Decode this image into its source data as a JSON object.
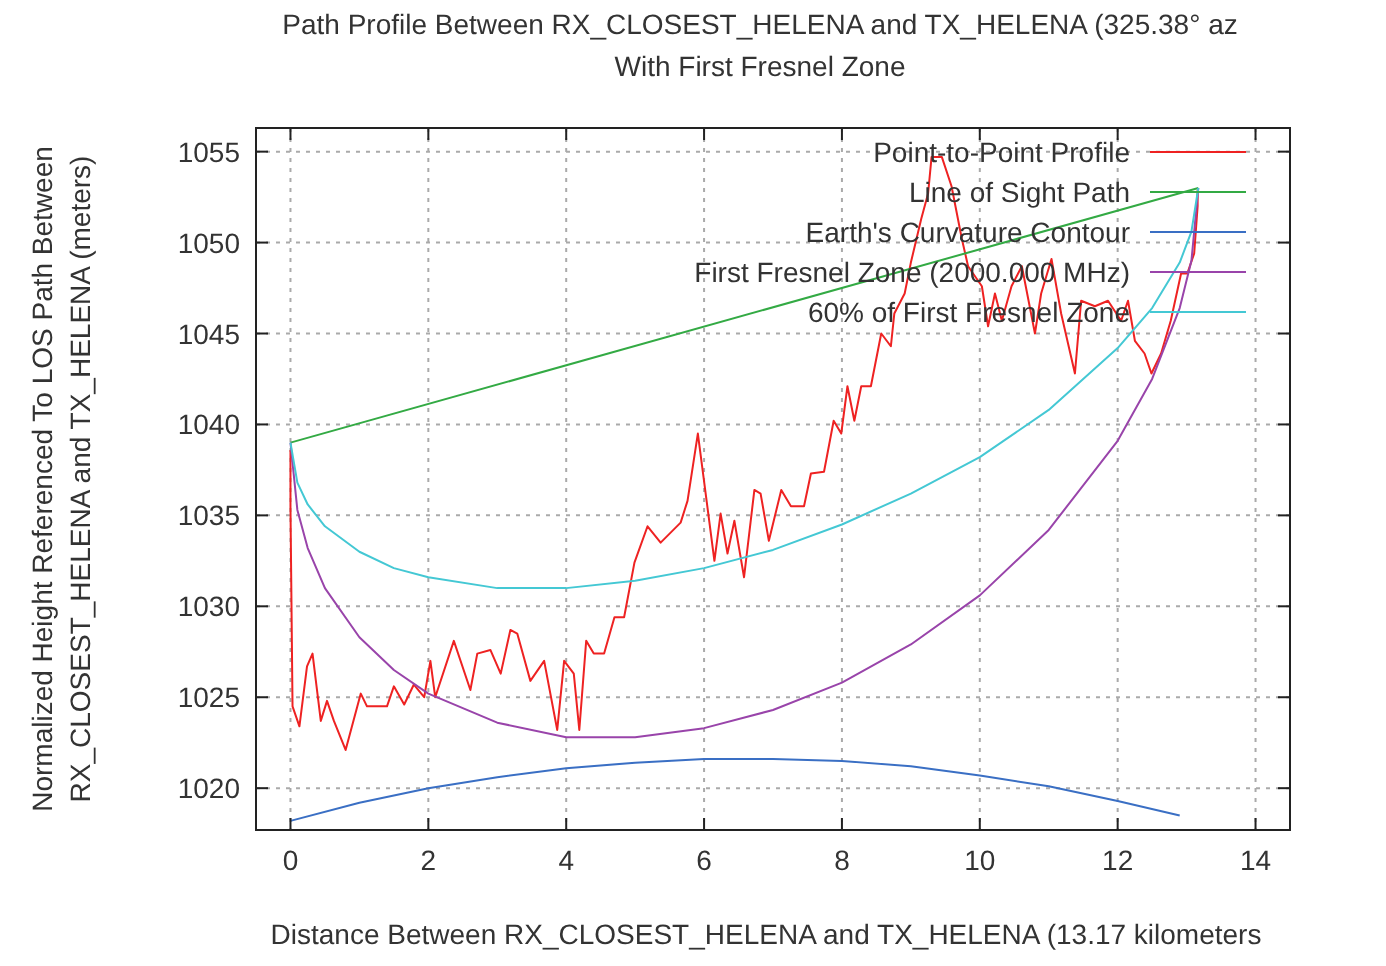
{
  "chart_data": {
    "type": "line",
    "title": "Path Profile Between RX_CLOSEST_HELENA and TX_HELENA (325.38° az",
    "subtitle": "With First Fresnel Zone",
    "xlabel": "Distance Between RX_CLOSEST_HELENA and TX_HELENA (13.17 kilometers",
    "ylabel": "Normalized Height Referenced To LOS Path Between\nRX_CLOSEST_HELENA and TX_HELENA (meters)",
    "xlim": [
      -0.5,
      14.5
    ],
    "xticks": [
      0,
      2,
      4,
      6,
      8,
      10,
      12,
      14
    ],
    "ylim": [
      1017.7,
      1056.3
    ],
    "yticks": [
      1020,
      1025,
      1030,
      1035,
      1040,
      1045,
      1050,
      1055
    ],
    "grid": true,
    "legend": "top right",
    "marker": "none",
    "line_style": "solid",
    "series": [
      {
        "name": "Point-to-Point Profile",
        "color": "#ee2222",
        "x": [
          0,
          0,
          0.03,
          0.13,
          0.24,
          0.32,
          0.44,
          0.53,
          0.63,
          0.8,
          1.02,
          1.11,
          1.4,
          1.5,
          1.65,
          1.79,
          1.94,
          2.03,
          2.1,
          2.37,
          2.61,
          2.71,
          2.9,
          3.05,
          3.19,
          3.29,
          3.48,
          3.68,
          3.87,
          3.97,
          4.11,
          4.19,
          4.29,
          4.4,
          4.55,
          4.7,
          4.84,
          4.99,
          5.18,
          5.37,
          5.66,
          5.76,
          5.91,
          6.15,
          6.24,
          6.34,
          6.44,
          6.58,
          6.73,
          6.82,
          6.94,
          7.12,
          7.26,
          7.45,
          7.55,
          7.74,
          7.88,
          7.99,
          8.08,
          8.18,
          8.28,
          8.42,
          8.57,
          8.71,
          8.76,
          8.91,
          9.0,
          9.15,
          9.25,
          9.3,
          9.45,
          9.59,
          9.74,
          9.83,
          10.03,
          10.12,
          10.22,
          10.32,
          10.46,
          10.61,
          10.8,
          10.89,
          11.04,
          11.18,
          11.38,
          11.47,
          11.67,
          11.86,
          12.05,
          12.15,
          12.25,
          12.39,
          12.49,
          12.63,
          12.77,
          12.92,
          13.01,
          13.11,
          13.16,
          13.16
        ],
        "values": [
          1038.6,
          1035.5,
          1024.5,
          1023.4,
          1026.7,
          1027.4,
          1023.7,
          1024.8,
          1023.7,
          1022.1,
          1025.2,
          1024.5,
          1024.5,
          1025.6,
          1024.6,
          1025.7,
          1025.0,
          1027.0,
          1025.0,
          1028.1,
          1025.4,
          1027.4,
          1027.6,
          1026.3,
          1028.7,
          1028.5,
          1025.9,
          1027.0,
          1023.2,
          1027.0,
          1026.3,
          1023.2,
          1028.1,
          1027.4,
          1027.4,
          1029.4,
          1029.4,
          1032.4,
          1034.4,
          1033.5,
          1034.6,
          1035.8,
          1039.5,
          1032.5,
          1035.1,
          1032.9,
          1034.7,
          1031.6,
          1036.4,
          1036.2,
          1033.6,
          1036.4,
          1035.5,
          1035.5,
          1037.3,
          1037.4,
          1040.2,
          1039.5,
          1042.1,
          1040.2,
          1042.1,
          1042.1,
          1045.0,
          1044.3,
          1046.1,
          1047.2,
          1048.9,
          1051.3,
          1052.7,
          1054.7,
          1054.7,
          1053.1,
          1050.2,
          1048.7,
          1047.6,
          1045.4,
          1047.2,
          1045.7,
          1047.6,
          1048.7,
          1045.0,
          1047.2,
          1049.1,
          1046.1,
          1042.8,
          1046.8,
          1046.5,
          1046.8,
          1045.7,
          1046.8,
          1044.6,
          1043.9,
          1042.8,
          1043.9,
          1045.7,
          1048.3,
          1048.3,
          1049.4,
          1052.0,
          1052.9
        ]
      },
      {
        "name": "Line of Sight Path",
        "color": "#33aa44",
        "x": [
          0,
          13.17
        ],
        "values": [
          1039.0,
          1053.0
        ]
      },
      {
        "name": "Earth's Curvature Contour",
        "color": "#3a6fc4",
        "x": [
          0,
          1,
          2,
          3,
          4,
          5,
          6,
          7,
          8,
          9,
          10,
          11,
          12,
          12.9
        ],
        "values": [
          1018.2,
          1019.2,
          1020.0,
          1020.6,
          1021.1,
          1021.4,
          1021.6,
          1021.6,
          1021.5,
          1021.2,
          1020.7,
          1020.1,
          1019.3,
          1018.5
        ]
      },
      {
        "name": "First Fresnel Zone (2000.000 MHz)",
        "color": "#9944aa",
        "x": [
          0,
          0.1,
          0.25,
          0.5,
          1,
          1.5,
          2,
          3,
          4,
          5,
          6,
          7,
          8,
          9,
          10,
          11,
          12,
          12.5,
          12.9,
          13.07,
          13.17
        ],
        "values": [
          1039.0,
          1035.3,
          1033.2,
          1031.0,
          1028.3,
          1026.5,
          1025.2,
          1023.6,
          1022.8,
          1022.8,
          1023.3,
          1024.3,
          1025.8,
          1027.9,
          1030.6,
          1034.2,
          1039.1,
          1042.5,
          1046.4,
          1049.0,
          1053.0
        ]
      },
      {
        "name": "60% of First Fresnel Zone",
        "color": "#44c8d4",
        "x": [
          0,
          0.1,
          0.25,
          0.5,
          1,
          1.5,
          2,
          3,
          4,
          5,
          6,
          7,
          8,
          9,
          10,
          11,
          12,
          12.5,
          12.9,
          13.07,
          13.17
        ],
        "values": [
          1039.0,
          1036.8,
          1035.6,
          1034.4,
          1033.0,
          1032.1,
          1031.6,
          1031.0,
          1031.0,
          1031.4,
          1032.1,
          1033.1,
          1034.5,
          1036.2,
          1038.2,
          1040.8,
          1044.2,
          1046.4,
          1048.9,
          1050.6,
          1053.0
        ]
      }
    ]
  }
}
